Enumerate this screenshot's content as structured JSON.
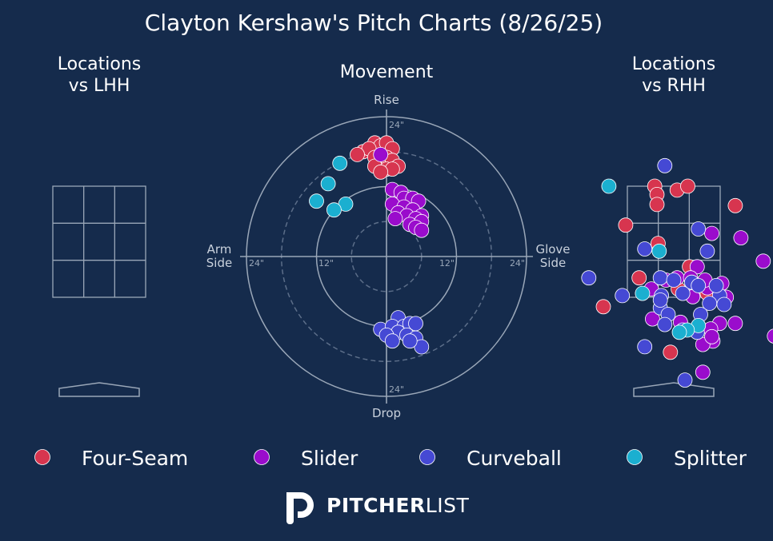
{
  "title": "Clayton Kershaw's Pitch Charts (8/26/25)",
  "colors": {
    "background": "#152b4c",
    "Four-Seam": "#d7354f",
    "Slider": "#9a0ccc",
    "Curveball": "#4549d4",
    "Splitter": "#1bafd0"
  },
  "logo": {
    "brand_bold": "PITCHER",
    "brand_light": "LIST",
    "icon": "pitcherlist-p-logo-icon"
  },
  "chart_data": [
    {
      "type": "scatter",
      "title": "Locations vs LHH",
      "subplot": "zone-locations",
      "series": []
    },
    {
      "type": "scatter",
      "title": "Movement",
      "subplot": "polar-movement",
      "axis_labels": {
        "top": "Rise",
        "bottom": "Drop",
        "left": "Arm Side",
        "right": "Glove Side"
      },
      "ring_labels": {
        "inner": "12\"",
        "outer": "24\""
      },
      "ring_radii_in": [
        6,
        12,
        18,
        24
      ],
      "series": [
        {
          "name": "Four-Seam",
          "points": [
            [
              -2,
              19.5
            ],
            [
              -1,
              19
            ],
            [
              0,
              19.5
            ],
            [
              1,
              18.5
            ],
            [
              -4,
              18
            ],
            [
              -3,
              18.5
            ],
            [
              -5,
              17.5
            ],
            [
              -2,
              17
            ],
            [
              0,
              17
            ],
            [
              1,
              16.5
            ],
            [
              2,
              15.5
            ],
            [
              -2,
              15.5
            ],
            [
              0,
              15
            ],
            [
              1,
              15
            ],
            [
              -1,
              14.5
            ]
          ]
        },
        {
          "name": "Slider",
          "points": [
            [
              -1,
              17.5
            ],
            [
              1,
              11.5
            ],
            [
              2.5,
              11
            ],
            [
              3,
              10
            ],
            [
              4.5,
              10
            ],
            [
              5.5,
              9.5
            ],
            [
              1,
              9
            ],
            [
              3,
              8.5
            ],
            [
              4.5,
              8
            ],
            [
              6,
              7
            ],
            [
              2,
              7.5
            ],
            [
              3.5,
              7
            ],
            [
              5,
              6.5
            ],
            [
              1.5,
              6.5
            ],
            [
              4,
              5.5
            ],
            [
              6,
              6
            ],
            [
              5,
              5
            ],
            [
              6,
              4.5
            ]
          ]
        },
        {
          "name": "Curveball",
          "points": [
            [
              2,
              -10.5
            ],
            [
              -1,
              -12.5
            ],
            [
              1,
              -12
            ],
            [
              3,
              -12
            ],
            [
              4,
              -11.5
            ],
            [
              5,
              -11.5
            ],
            [
              2,
              -13
            ],
            [
              3.5,
              -13.5
            ],
            [
              5,
              -14
            ],
            [
              6,
              -15.5
            ],
            [
              0,
              -13.5
            ],
            [
              1,
              -14.5
            ],
            [
              4,
              -14.5
            ]
          ]
        },
        {
          "name": "Splitter",
          "points": [
            [
              -8,
              16
            ],
            [
              -10,
              12.5
            ],
            [
              -12,
              9.5
            ],
            [
              -7,
              9
            ],
            [
              -9,
              8
            ]
          ]
        }
      ]
    },
    {
      "type": "scatter",
      "title": "Locations vs RHH",
      "subplot": "zone-locations",
      "series": [
        {
          "name": "Four-Seam",
          "points": [
            [
              -0.34,
              3.45
            ],
            [
              -0.3,
              3.3
            ],
            [
              -0.3,
              3.12
            ],
            [
              0.06,
              3.38
            ],
            [
              0.25,
              3.45
            ],
            [
              1.1,
              3.1
            ],
            [
              -0.86,
              2.75
            ],
            [
              -0.28,
              2.42
            ],
            [
              0.28,
              2.0
            ],
            [
              -0.62,
              1.8
            ],
            [
              0.08,
              1.6
            ],
            [
              0.6,
              1.52
            ],
            [
              -1.26,
              1.28
            ],
            [
              2.3,
              1.35
            ],
            [
              -0.06,
              0.46
            ]
          ]
        },
        {
          "name": "Slider",
          "points": [
            [
              0.68,
              2.6
            ],
            [
              1.2,
              2.52
            ],
            [
              1.6,
              2.1
            ],
            [
              0.42,
              2.0
            ],
            [
              -0.14,
              1.76
            ],
            [
              0.06,
              1.8
            ],
            [
              0.3,
              1.8
            ],
            [
              0.6,
              1.62
            ],
            [
              0.56,
              1.76
            ],
            [
              -0.4,
              1.6
            ],
            [
              0.86,
              1.7
            ],
            [
              0.34,
              1.46
            ],
            [
              0.94,
              1.45
            ],
            [
              -0.38,
              1.06
            ],
            [
              0.12,
              1.0
            ],
            [
              0.82,
              0.98
            ],
            [
              1.1,
              0.98
            ],
            [
              0.66,
              0.88
            ],
            [
              1.8,
              0.75
            ],
            [
              0.7,
              0.66
            ],
            [
              0.52,
              0.6
            ],
            [
              0.68,
              0.74
            ],
            [
              0.52,
              0.1
            ]
          ]
        },
        {
          "name": "Curveball",
          "points": [
            [
              -0.16,
              3.82
            ],
            [
              0.44,
              2.68
            ],
            [
              -0.52,
              2.32
            ],
            [
              0.6,
              2.28
            ],
            [
              -0.24,
              1.8
            ],
            [
              0.0,
              1.76
            ],
            [
              0.32,
              1.72
            ],
            [
              0.44,
              1.66
            ],
            [
              0.82,
              1.48
            ],
            [
              0.16,
              1.52
            ],
            [
              -0.22,
              1.48
            ],
            [
              -0.24,
              1.26
            ],
            [
              0.76,
              1.66
            ],
            [
              0.64,
              1.34
            ],
            [
              0.48,
              1.14
            ],
            [
              0.9,
              1.32
            ],
            [
              -0.24,
              1.4
            ],
            [
              -0.1,
              1.14
            ],
            [
              -1.52,
              1.8
            ],
            [
              -0.16,
              0.96
            ],
            [
              -0.92,
              1.48
            ],
            [
              0.42,
              0.82
            ],
            [
              0.16,
              0.86
            ],
            [
              -0.52,
              0.56
            ],
            [
              0.2,
              -0.04
            ]
          ]
        },
        {
          "name": "Splitter",
          "points": [
            [
              -1.16,
              3.45
            ],
            [
              -0.26,
              2.28
            ],
            [
              -0.56,
              1.52
            ],
            [
              0.44,
              0.94
            ],
            [
              0.24,
              0.86
            ],
            [
              0.1,
              0.82
            ]
          ]
        }
      ]
    }
  ],
  "legend": [
    {
      "name": "Four-Seam"
    },
    {
      "name": "Slider"
    },
    {
      "name": "Curveball"
    },
    {
      "name": "Splitter"
    }
  ]
}
